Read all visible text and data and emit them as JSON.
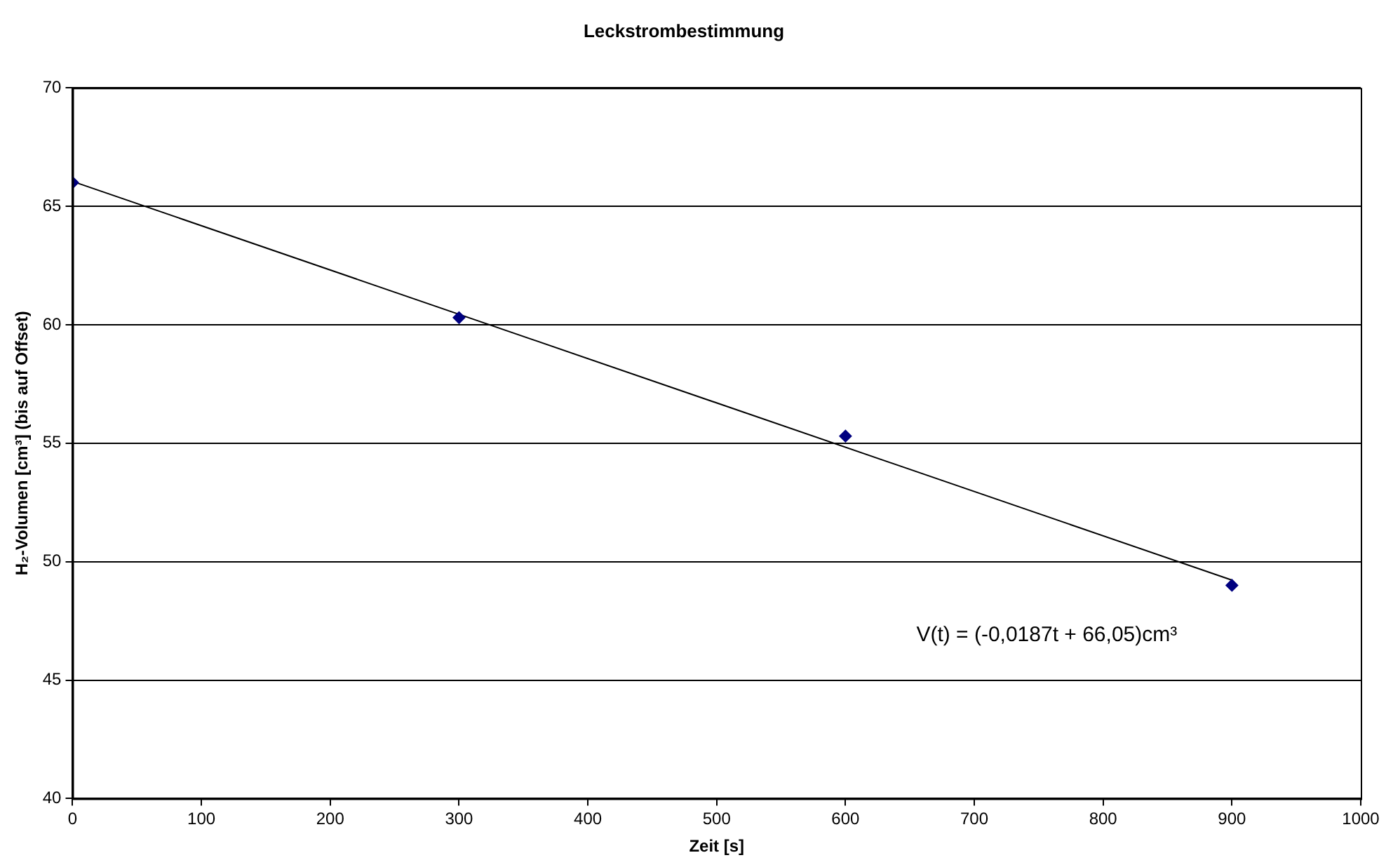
{
  "chart_data": {
    "type": "scatter",
    "title": "Leckstrombestimmung",
    "xlabel": "Zeit [s]",
    "ylabel": "H₂-Volumen [cm³] (bis auf Offset)",
    "xlim": [
      0,
      1000
    ],
    "xticks": [
      0,
      100,
      200,
      300,
      400,
      500,
      600,
      700,
      800,
      900,
      1000
    ],
    "ylim": [
      40,
      70
    ],
    "yticks": [
      40,
      45,
      50,
      55,
      60,
      65,
      70
    ],
    "grid": "y",
    "legend": false,
    "series": [
      {
        "x": [
          0,
          300,
          600,
          900
        ],
        "values": [
          66,
          60.3,
          55.3,
          49
        ],
        "color": "#000080",
        "marker": "diamond"
      },
      {
        "type": "line",
        "x": [
          0,
          900
        ],
        "values": [
          66.05,
          49.22
        ],
        "color": "#000000",
        "marker": "none",
        "line_style": "solid"
      }
    ],
    "annotations": [
      "V(t) = (-0,0187t + 66,05)cm³"
    ]
  }
}
